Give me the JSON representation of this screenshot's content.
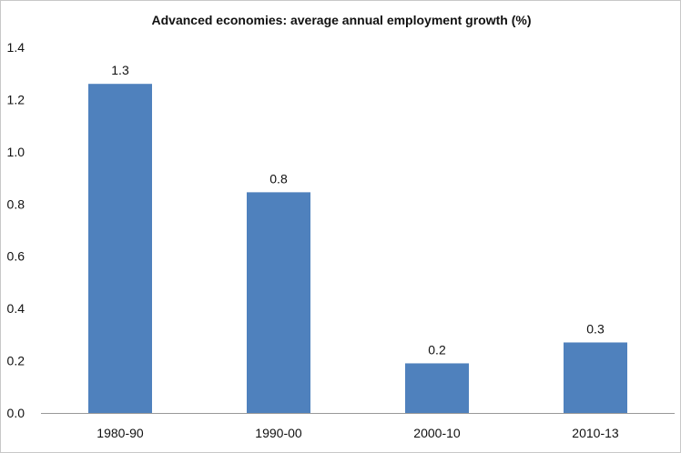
{
  "chart_data": {
    "type": "bar",
    "title": "Advanced economies: average annual employment growth (%)",
    "categories": [
      "1980-90",
      "1990-00",
      "2000-10",
      "2010-13"
    ],
    "values": [
      1.26,
      0.845,
      0.19,
      0.27
    ],
    "data_labels": [
      "1.3",
      "0.8",
      "0.2",
      "0.3"
    ],
    "y_ticks": [
      "0.0",
      "0.2",
      "0.4",
      "0.6",
      "0.8",
      "1.0",
      "1.2",
      "1.4"
    ],
    "ylim": [
      0,
      1.4
    ],
    "grid": false,
    "legend": "none",
    "bar_color": "#4f81bd",
    "xlabel": "",
    "ylabel": ""
  }
}
